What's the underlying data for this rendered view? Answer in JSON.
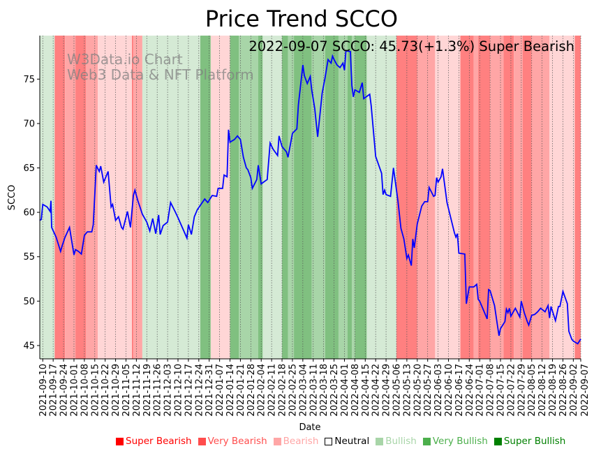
{
  "chart_data": {
    "type": "line",
    "title": "Price Trend SCCO",
    "annotation": "2022-09-07 SCCO: 45.73(+1.3%) Super Bearish",
    "watermark": [
      "W3Data.io Chart",
      "Web3 Data & NFT Platform"
    ],
    "xlabel": "Date",
    "ylabel": "SCCO",
    "x_origin": "2021-09-08",
    "x_unit": "days since x_origin",
    "xlim": [
      0,
      364
    ],
    "ylim": [
      43.5,
      79.9
    ],
    "yticks": [
      45,
      50,
      55,
      60,
      65,
      70,
      75
    ],
    "xtick_start_day": 2,
    "xtick_labels": [
      "2021-09-10",
      "2021-09-17",
      "2021-09-24",
      "2021-10-01",
      "2021-10-08",
      "2021-10-15",
      "2021-10-22",
      "2021-10-29",
      "2021-11-05",
      "2021-11-12",
      "2021-11-19",
      "2021-11-26",
      "2021-12-03",
      "2021-12-10",
      "2021-12-17",
      "2021-12-24",
      "2021-12-31",
      "2022-01-07",
      "2022-01-14",
      "2022-01-21",
      "2022-01-28",
      "2022-02-04",
      "2022-02-11",
      "2022-02-18",
      "2022-02-25",
      "2022-03-04",
      "2022-03-11",
      "2022-03-18",
      "2022-03-25",
      "2022-04-01",
      "2022-04-08",
      "2022-04-15",
      "2022-04-22",
      "2022-04-29",
      "2022-05-06",
      "2022-05-13",
      "2022-05-20",
      "2022-05-27",
      "2022-06-03",
      "2022-06-10",
      "2022-06-17",
      "2022-06-24",
      "2022-07-01",
      "2022-07-08",
      "2022-07-15",
      "2022-07-22",
      "2022-07-29",
      "2022-08-05",
      "2022-08-12",
      "2022-08-19",
      "2022-08-26",
      "2022-09-02",
      "2022-09-07"
    ],
    "grid": "vertical dotted",
    "line_color": "#0000ff",
    "series": [
      {
        "name": "SCCO",
        "points": [
          [
            0,
            59.1
          ],
          [
            1,
            59.2
          ],
          [
            2,
            60.9
          ],
          [
            5,
            60.6
          ],
          [
            7,
            60.1
          ],
          [
            7.5,
            61.3
          ],
          [
            8,
            58.3
          ],
          [
            11,
            57.2
          ],
          [
            14,
            55.6
          ],
          [
            15,
            56.2
          ],
          [
            17,
            57.2
          ],
          [
            20,
            58.3
          ],
          [
            23,
            55.2
          ],
          [
            24,
            55.8
          ],
          [
            26,
            55.6
          ],
          [
            28,
            55.3
          ],
          [
            30,
            57.4
          ],
          [
            32,
            57.8
          ],
          [
            35,
            57.8
          ],
          [
            36,
            58.6
          ],
          [
            38,
            65.3
          ],
          [
            40,
            64.6
          ],
          [
            41,
            65.2
          ],
          [
            43,
            63.4
          ],
          [
            44,
            63.8
          ],
          [
            46,
            64.6
          ],
          [
            48,
            60.6
          ],
          [
            49,
            60.9
          ],
          [
            51,
            59.1
          ],
          [
            53,
            59.5
          ],
          [
            55,
            58.3
          ],
          [
            56,
            58.1
          ],
          [
            59,
            60.1
          ],
          [
            61,
            58.3
          ],
          [
            63,
            61.9
          ],
          [
            64,
            62.5
          ],
          [
            66,
            61.3
          ],
          [
            67,
            60.8
          ],
          [
            69,
            59.8
          ],
          [
            72,
            58.9
          ],
          [
            74,
            57.9
          ],
          [
            76,
            59.3
          ],
          [
            78,
            57.6
          ],
          [
            80,
            59.7
          ],
          [
            81,
            57.5
          ],
          [
            83,
            58.5
          ],
          [
            86,
            58.9
          ],
          [
            88,
            61.1
          ],
          [
            91,
            60.1
          ],
          [
            93,
            59.4
          ],
          [
            99,
            57.1
          ],
          [
            100,
            58.6
          ],
          [
            102,
            57.5
          ],
          [
            104,
            59.5
          ],
          [
            106,
            60.3
          ],
          [
            111,
            61.5
          ],
          [
            113,
            61.1
          ],
          [
            116,
            61.9
          ],
          [
            119,
            61.8
          ],
          [
            120,
            62.7
          ],
          [
            123,
            62.7
          ],
          [
            124,
            64.2
          ],
          [
            126,
            64.0
          ],
          [
            127,
            69.3
          ],
          [
            128,
            67.9
          ],
          [
            131,
            68.2
          ],
          [
            133,
            68.6
          ],
          [
            135,
            68.2
          ],
          [
            137,
            66.2
          ],
          [
            139,
            65.0
          ],
          [
            140,
            64.8
          ],
          [
            142,
            63.9
          ],
          [
            143,
            62.7
          ],
          [
            146,
            63.7
          ],
          [
            147,
            65.3
          ],
          [
            149,
            63.2
          ],
          [
            153,
            63.7
          ],
          [
            155,
            67.8
          ],
          [
            157,
            67.1
          ],
          [
            160,
            66.4
          ],
          [
            161,
            68.6
          ],
          [
            163,
            67.4
          ],
          [
            166,
            66.8
          ],
          [
            167,
            66.2
          ],
          [
            170,
            68.9
          ],
          [
            173,
            69.4
          ],
          [
            174,
            72.1
          ],
          [
            177,
            76.6
          ],
          [
            178,
            75.4
          ],
          [
            180,
            74.5
          ],
          [
            182,
            75.3
          ],
          [
            183,
            73.8
          ],
          [
            185,
            71.7
          ],
          [
            187,
            68.5
          ],
          [
            190,
            73.4
          ],
          [
            192,
            75.2
          ],
          [
            194,
            77.2
          ],
          [
            196,
            76.8
          ],
          [
            197,
            77.6
          ],
          [
            198,
            77.2
          ],
          [
            200,
            76.6
          ],
          [
            202,
            76.3
          ],
          [
            204,
            76.8
          ],
          [
            205,
            76.0
          ],
          [
            206,
            78.2
          ],
          [
            209,
            78.1
          ],
          [
            210,
            74.3
          ],
          [
            211,
            73.0
          ],
          [
            212,
            73.8
          ],
          [
            215,
            73.5
          ],
          [
            217,
            74.6
          ],
          [
            218,
            72.8
          ],
          [
            222,
            73.3
          ],
          [
            223,
            72.0
          ],
          [
            226,
            66.3
          ],
          [
            230,
            64.4
          ],
          [
            231,
            62.0
          ],
          [
            232,
            62.5
          ],
          [
            233,
            62.0
          ],
          [
            236,
            61.8
          ],
          [
            238,
            65.0
          ],
          [
            241,
            61.3
          ],
          [
            243,
            58.2
          ],
          [
            245,
            57.0
          ],
          [
            247,
            54.8
          ],
          [
            248,
            55.2
          ],
          [
            250,
            54.0
          ],
          [
            251,
            57.0
          ],
          [
            252,
            56.0
          ],
          [
            254,
            58.7
          ],
          [
            257,
            60.7
          ],
          [
            259,
            61.2
          ],
          [
            261,
            61.2
          ],
          [
            262,
            62.8
          ],
          [
            265,
            61.8
          ],
          [
            266,
            61.9
          ],
          [
            267,
            63.9
          ],
          [
            268,
            63.4
          ],
          [
            270,
            64.0
          ],
          [
            271,
            64.9
          ],
          [
            274,
            61.1
          ],
          [
            279,
            57.7
          ],
          [
            280,
            57.2
          ],
          [
            281,
            57.6
          ],
          [
            282,
            55.4
          ],
          [
            286,
            55.3
          ],
          [
            287,
            49.7
          ],
          [
            289,
            51.6
          ],
          [
            292,
            51.6
          ],
          [
            294,
            51.9
          ],
          [
            295,
            50.2
          ],
          [
            296,
            50.0
          ],
          [
            298,
            49.2
          ],
          [
            301,
            48.0
          ],
          [
            302,
            51.3
          ],
          [
            303,
            51.2
          ],
          [
            306,
            49.5
          ],
          [
            308,
            47.2
          ],
          [
            309,
            46.1
          ],
          [
            310,
            46.9
          ],
          [
            313,
            47.7
          ],
          [
            314,
            49.1
          ],
          [
            315,
            48.7
          ],
          [
            316,
            49.2
          ],
          [
            317,
            48.3
          ],
          [
            320,
            49.2
          ],
          [
            323,
            48.2
          ],
          [
            324,
            50.0
          ],
          [
            326,
            48.7
          ],
          [
            328,
            47.7
          ],
          [
            329,
            47.3
          ],
          [
            331,
            48.4
          ],
          [
            333,
            48.5
          ],
          [
            335,
            48.8
          ],
          [
            337,
            49.2
          ],
          [
            340,
            48.8
          ],
          [
            342,
            49.5
          ],
          [
            343,
            48.1
          ],
          [
            344,
            49.4
          ],
          [
            347,
            47.8
          ],
          [
            349,
            49.4
          ],
          [
            350,
            49.4
          ],
          [
            352,
            51.1
          ],
          [
            355,
            49.7
          ],
          [
            356,
            46.6
          ],
          [
            358,
            45.7
          ],
          [
            359,
            45.5
          ],
          [
            362,
            45.2
          ],
          [
            364,
            45.73
          ]
        ]
      }
    ],
    "regime_bands": [
      [
        0,
        10,
        "Bullish"
      ],
      [
        10,
        17,
        "Super Bearish"
      ],
      [
        17,
        24,
        "Very Bearish"
      ],
      [
        24,
        31,
        "Super Bearish"
      ],
      [
        31,
        39,
        "Very Bearish"
      ],
      [
        39,
        62,
        "Bearish"
      ],
      [
        62,
        63,
        "Super Bearish"
      ],
      [
        63,
        69,
        "Very Bearish"
      ],
      [
        69,
        108,
        "Bullish"
      ],
      [
        108,
        115,
        "Super Bullish"
      ],
      [
        115,
        128,
        "Bearish"
      ],
      [
        128,
        134,
        "Super Bullish"
      ],
      [
        134,
        147,
        "Very Bullish"
      ],
      [
        147,
        150,
        "Super Bullish"
      ],
      [
        150,
        163,
        "Bullish"
      ],
      [
        163,
        167,
        "Super Bullish"
      ],
      [
        167,
        171,
        "Very Bullish"
      ],
      [
        171,
        183,
        "Super Bullish"
      ],
      [
        183,
        192,
        "Very Bullish"
      ],
      [
        192,
        201,
        "Super Bullish"
      ],
      [
        201,
        207,
        "Very Bullish"
      ],
      [
        207,
        210,
        "Super Bullish"
      ],
      [
        210,
        212,
        "Very Bullish"
      ],
      [
        212,
        220,
        "Super Bullish"
      ],
      [
        220,
        240,
        "Bullish"
      ],
      [
        240,
        254,
        "Super Bearish"
      ],
      [
        254,
        266,
        "Very Bearish"
      ],
      [
        266,
        283,
        "Bearish"
      ],
      [
        283,
        292,
        "Super Bearish"
      ],
      [
        292,
        295,
        "Very Bearish"
      ],
      [
        295,
        303,
        "Super Bearish"
      ],
      [
        303,
        312,
        "Very Bearish"
      ],
      [
        312,
        319,
        "Super Bearish"
      ],
      [
        319,
        325,
        "Very Bearish"
      ],
      [
        325,
        331,
        "Super Bearish"
      ],
      [
        331,
        343,
        "Very Bearish"
      ],
      [
        343,
        360,
        "Bearish"
      ],
      [
        360,
        364,
        "Super Bearish"
      ]
    ],
    "legend_placement": "bottom",
    "legend": [
      {
        "label": "Super Bearish",
        "swatch": "#ff0000",
        "text_color": "#ff0000",
        "band": "#ff8080"
      },
      {
        "label": "Very Bearish",
        "swatch": "#ff4d4d",
        "text_color": "#ff4d4d",
        "band": "#ffa6a6"
      },
      {
        "label": "Bearish",
        "swatch": "#ffa6a6",
        "text_color": "#ffa6a6",
        "band": "#ffd6d6"
      },
      {
        "label": "Neutral",
        "swatch": "#ffffff",
        "text_color": "#000000",
        "band": "#ffffff"
      },
      {
        "label": "Bullish",
        "swatch": "#a8d5a8",
        "text_color": "#a8d5a8",
        "band": "#d5ead5"
      },
      {
        "label": "Very Bullish",
        "swatch": "#4caf4c",
        "text_color": "#4caf4c",
        "band": "#a8d5a8"
      },
      {
        "label": "Super Bullish",
        "swatch": "#008000",
        "text_color": "#008000",
        "band": "#80c080"
      }
    ]
  }
}
